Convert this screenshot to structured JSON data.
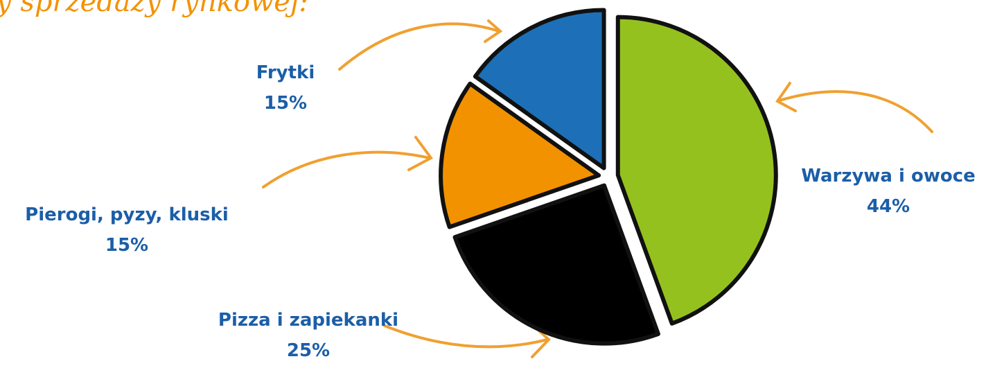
{
  "chart_data": {
    "type": "pie",
    "title": "y sprzedaży rynkowej:",
    "categories": [
      "Warzywa i owoce",
      "Pizza i zapiekanki",
      "Pierogi, pyzy, kluski",
      "Frytki"
    ],
    "values": [
      44,
      25,
      15,
      15
    ],
    "value_labels": [
      "44%",
      "25%",
      "15%",
      "15%"
    ],
    "colors": [
      "#95c11f",
      "#000000",
      "#f39200",
      "#1d70b7"
    ]
  }
}
